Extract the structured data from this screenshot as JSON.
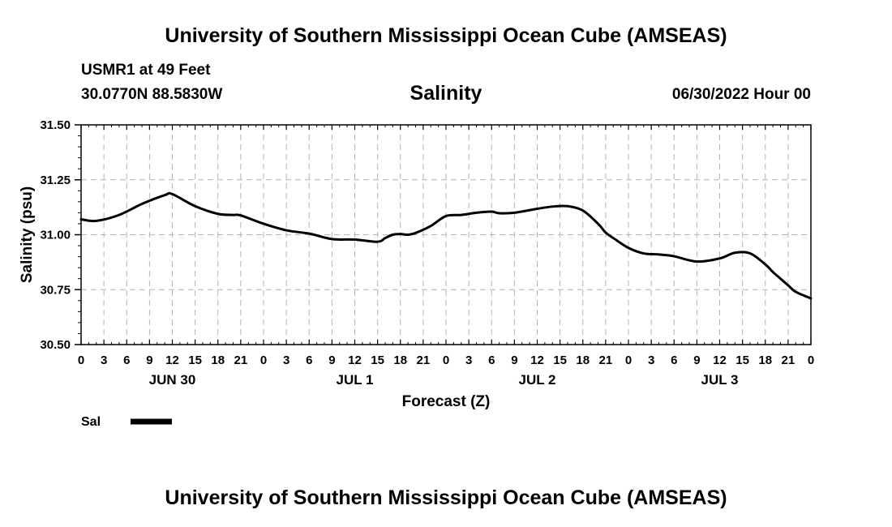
{
  "header": {
    "title": "University of Southern Mississippi Ocean Cube (AMSEAS)",
    "station": "USMR1 at 49 Feet",
    "location": "30.0770N  88.5830W",
    "date": "06/30/2022 Hour 00"
  },
  "footer": {
    "title": "University of Southern Mississippi Ocean Cube (AMSEAS)"
  },
  "chart_data": {
    "type": "line",
    "title": "Salinity",
    "xlabel": "Forecast (Z)",
    "ylabel": "Salinity (psu)",
    "xlim": [
      0,
      96
    ],
    "ylim": [
      30.5,
      31.5
    ],
    "grid": true,
    "yticks": [
      "30.50",
      "30.75",
      "31.00",
      "31.25",
      "31.50"
    ],
    "xtick_labels": [
      "0",
      "3",
      "6",
      "9",
      "12",
      "15",
      "18",
      "21",
      "0",
      "3",
      "6",
      "9",
      "12",
      "15",
      "18",
      "21",
      "0",
      "3",
      "6",
      "9",
      "12",
      "15",
      "18",
      "21",
      "0",
      "3",
      "6",
      "9",
      "12",
      "15",
      "18",
      "21",
      "0"
    ],
    "day_labels": [
      {
        "label": "JUN 30",
        "hour": 12
      },
      {
        "label": "JUL 1",
        "hour": 36
      },
      {
        "label": "JUL 2",
        "hour": 60
      },
      {
        "label": "JUL 3",
        "hour": 84
      }
    ],
    "legend": {
      "label": "Sal",
      "placement": "bottom-left"
    },
    "series": [
      {
        "name": "Sal",
        "x": [
          0,
          2,
          5,
          8,
          11,
          12,
          15,
          18,
          20,
          21,
          24,
          27,
          30,
          33,
          36,
          39,
          40,
          41,
          42,
          43,
          44,
          46,
          48,
          50,
          52,
          54,
          55,
          57,
          60,
          62,
          64,
          66,
          68,
          69,
          70,
          72,
          74,
          76,
          78,
          81,
          84,
          86,
          88,
          90,
          91,
          92,
          93,
          94,
          96
        ],
        "values": [
          31.07,
          31.063,
          31.09,
          31.14,
          31.18,
          31.185,
          31.13,
          31.095,
          31.09,
          31.088,
          31.05,
          31.02,
          31.005,
          30.98,
          30.978,
          30.968,
          30.985,
          31.0,
          31.003,
          31.0,
          31.008,
          31.04,
          31.085,
          31.09,
          31.1,
          31.105,
          31.098,
          31.1,
          31.118,
          31.128,
          31.13,
          31.11,
          31.05,
          31.01,
          30.985,
          30.94,
          30.915,
          30.91,
          30.902,
          30.878,
          30.892,
          30.918,
          30.915,
          30.865,
          30.83,
          30.8,
          30.77,
          30.74,
          30.71
        ]
      }
    ]
  }
}
